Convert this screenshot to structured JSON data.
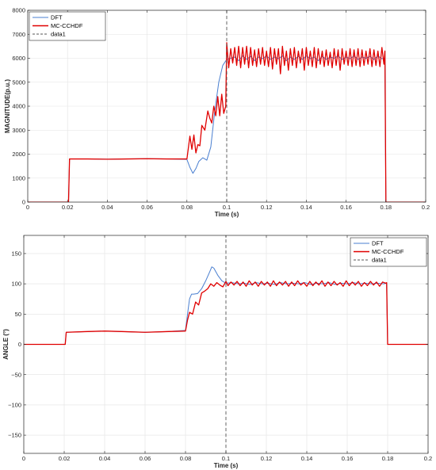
{
  "chart_data": [
    {
      "type": "line",
      "title": "",
      "xlabel": "Time (s)",
      "ylabel": "MAGNITUDE(p.u.)",
      "xlim": [
        0,
        0.2
      ],
      "ylim": [
        0,
        8000
      ],
      "xticks": [
        0,
        0.02,
        0.04,
        0.06,
        0.08,
        0.1,
        0.12,
        0.14,
        0.16,
        0.18,
        0.2
      ],
      "xtick_labels": [
        "0",
        "0.02",
        "0.04",
        "0.06",
        "0.08",
        "0.1",
        "0.12",
        "0.14",
        "0.16",
        "0.18",
        "0.2"
      ],
      "yticks": [
        0,
        1000,
        2000,
        3000,
        4000,
        5000,
        6000,
        7000,
        8000
      ],
      "ytick_labels": [
        "0",
        "1000",
        "2000",
        "3000",
        "4000",
        "5000",
        "6000",
        "7000",
        "8000"
      ],
      "grid": true,
      "legend_position": "top-left",
      "series": [
        {
          "name": "DFT",
          "color": "#4a7fd0",
          "x": [
            0,
            0.0205,
            0.021,
            0.03,
            0.04,
            0.05,
            0.06,
            0.07,
            0.08,
            0.0815,
            0.083,
            0.0845,
            0.086,
            0.088,
            0.09,
            0.092,
            0.094,
            0.096,
            0.098,
            0.1,
            0.102,
            0.104,
            0.106,
            0.108,
            0.11,
            0.112,
            0.114,
            0.116,
            0.118,
            0.12,
            0.122,
            0.124,
            0.126,
            0.128,
            0.13,
            0.132,
            0.134,
            0.136,
            0.138,
            0.14,
            0.142,
            0.144,
            0.146,
            0.148,
            0.15,
            0.152,
            0.154,
            0.156,
            0.158,
            0.16,
            0.162,
            0.164,
            0.166,
            0.168,
            0.17,
            0.172,
            0.174,
            0.176,
            0.178,
            0.1795,
            0.18,
            0.2
          ],
          "y": [
            0,
            0,
            1800,
            1800,
            1790,
            1800,
            1810,
            1800,
            1780,
            1450,
            1200,
            1400,
            1700,
            1850,
            1750,
            2300,
            3800,
            5000,
            5700,
            5950,
            6000,
            6050,
            5900,
            6100,
            5950,
            6080,
            5900,
            6050,
            5980,
            6100,
            5950,
            6050,
            5980,
            6100,
            5900,
            6050,
            5950,
            6080,
            5950,
            6100,
            5980,
            6050,
            5900,
            6080,
            5950,
            6050,
            6000,
            6100,
            5950,
            6050,
            5980,
            6100,
            5950,
            6050,
            6000,
            6080,
            5950,
            6100,
            5980,
            6000,
            0,
            0
          ]
        },
        {
          "name": "MC-CCHDF",
          "color": "#e00000",
          "x": [
            0,
            0.0205,
            0.021,
            0.03,
            0.04,
            0.05,
            0.06,
            0.07,
            0.08,
            0.0815,
            0.0825,
            0.0835,
            0.0845,
            0.0855,
            0.0865,
            0.0875,
            0.089,
            0.0905,
            0.0915,
            0.0925,
            0.0935,
            0.0945,
            0.0955,
            0.0965,
            0.0975,
            0.0985,
            0.0995,
            0.1,
            0.101,
            0.102,
            0.103,
            0.104,
            0.105,
            0.106,
            0.107,
            0.108,
            0.109,
            0.11,
            0.111,
            0.112,
            0.113,
            0.114,
            0.115,
            0.116,
            0.117,
            0.118,
            0.119,
            0.12,
            0.121,
            0.122,
            0.123,
            0.124,
            0.125,
            0.126,
            0.127,
            0.128,
            0.129,
            0.13,
            0.131,
            0.132,
            0.133,
            0.134,
            0.135,
            0.136,
            0.137,
            0.138,
            0.139,
            0.14,
            0.141,
            0.142,
            0.143,
            0.144,
            0.145,
            0.146,
            0.147,
            0.148,
            0.149,
            0.15,
            0.151,
            0.152,
            0.153,
            0.154,
            0.155,
            0.156,
            0.157,
            0.158,
            0.159,
            0.16,
            0.161,
            0.162,
            0.163,
            0.164,
            0.165,
            0.166,
            0.167,
            0.168,
            0.169,
            0.17,
            0.171,
            0.172,
            0.173,
            0.174,
            0.175,
            0.176,
            0.177,
            0.178,
            0.179,
            0.1795,
            0.18,
            0.2
          ],
          "y": [
            0,
            0,
            1800,
            1800,
            1790,
            1800,
            1810,
            1800,
            1800,
            2750,
            2200,
            2800,
            2050,
            2400,
            2350,
            3200,
            3000,
            3800,
            3500,
            3300,
            4000,
            3600,
            4400,
            3600,
            4500,
            3700,
            4000,
            6650,
            5600,
            6400,
            5800,
            6450,
            5700,
            6500,
            5600,
            6450,
            5750,
            6500,
            5600,
            6450,
            5700,
            6350,
            5650,
            6400,
            5750,
            6450,
            5700,
            6300,
            5650,
            6450,
            5550,
            6400,
            5750,
            6400,
            5350,
            6500,
            5700,
            6300,
            5500,
            6400,
            5700,
            6450,
            5600,
            6300,
            5800,
            6400,
            5500,
            6450,
            5700,
            6300,
            5650,
            6450,
            5600,
            6400,
            5750,
            6300,
            5650,
            6350,
            5700,
            6250,
            5600,
            6400,
            5700,
            6350,
            5500,
            6400,
            5750,
            6300,
            5700,
            6400,
            5650,
            6350,
            5700,
            6400,
            5650,
            6350,
            5700,
            6300,
            5750,
            6400,
            5650,
            6350,
            5700,
            6300,
            5650,
            6450,
            5750,
            6300,
            0,
            0
          ]
        },
        {
          "name": "data1",
          "color": "#555555",
          "dashed": true,
          "x": [
            0.1,
            0.1
          ],
          "y": [
            0,
            8000
          ]
        }
      ]
    },
    {
      "type": "line",
      "title": "",
      "xlabel": "Time (s)",
      "ylabel": "ANGLE (°)",
      "xlim": [
        0,
        0.2
      ],
      "ylim": [
        -180,
        180
      ],
      "xticks": [
        0,
        0.02,
        0.04,
        0.06,
        0.08,
        0.1,
        0.12,
        0.14,
        0.16,
        0.18,
        0.2
      ],
      "xtick_labels": [
        "0",
        "0.02",
        "0.04",
        "0.06",
        "0.08",
        "0.1",
        "0.12",
        "0.14",
        "0.16",
        "0.18",
        "0.2"
      ],
      "yticks": [
        -150,
        -100,
        -50,
        0,
        50,
        100,
        150
      ],
      "ytick_labels": [
        "−150",
        "−100",
        "−50",
        "0",
        "50",
        "100",
        "150"
      ],
      "grid": true,
      "legend_position": "top-right",
      "series": [
        {
          "name": "DFT",
          "color": "#4a7fd0",
          "x": [
            0,
            0.0205,
            0.021,
            0.03,
            0.04,
            0.05,
            0.06,
            0.07,
            0.08,
            0.081,
            0.082,
            0.083,
            0.084,
            0.086,
            0.088,
            0.09,
            0.092,
            0.093,
            0.094,
            0.096,
            0.098,
            0.1,
            0.103,
            0.106,
            0.109,
            0.112,
            0.115,
            0.118,
            0.121,
            0.124,
            0.127,
            0.13,
            0.133,
            0.136,
            0.139,
            0.142,
            0.145,
            0.148,
            0.151,
            0.154,
            0.157,
            0.16,
            0.163,
            0.166,
            0.169,
            0.172,
            0.175,
            0.178,
            0.1795,
            0.18,
            0.2
          ],
          "y": [
            0,
            0,
            20,
            21,
            22,
            21,
            20,
            21,
            23,
            50,
            75,
            83,
            83,
            84,
            92,
            105,
            120,
            128,
            126,
            114,
            105,
            101,
            102,
            100,
            101,
            99,
            102,
            100,
            101,
            99,
            102,
            100,
            101,
            100,
            102,
            99,
            101,
            100,
            102,
            99,
            101,
            100,
            102,
            100,
            101,
            100,
            101,
            100,
            101,
            0,
            0
          ]
        },
        {
          "name": "MC-CCHDF",
          "color": "#e00000",
          "x": [
            0,
            0.0205,
            0.021,
            0.03,
            0.04,
            0.05,
            0.06,
            0.07,
            0.08,
            0.081,
            0.082,
            0.0835,
            0.085,
            0.0865,
            0.088,
            0.0895,
            0.091,
            0.0925,
            0.094,
            0.0955,
            0.097,
            0.0985,
            0.1,
            0.101,
            0.1025,
            0.104,
            0.1055,
            0.107,
            0.1085,
            0.11,
            0.1115,
            0.113,
            0.1145,
            0.116,
            0.1175,
            0.119,
            0.1205,
            0.122,
            0.1235,
            0.125,
            0.1265,
            0.128,
            0.1295,
            0.131,
            0.1325,
            0.134,
            0.1355,
            0.137,
            0.1385,
            0.14,
            0.1415,
            0.143,
            0.1445,
            0.146,
            0.1475,
            0.149,
            0.1505,
            0.152,
            0.1535,
            0.155,
            0.1565,
            0.158,
            0.1595,
            0.161,
            0.1625,
            0.164,
            0.1655,
            0.167,
            0.1685,
            0.17,
            0.1715,
            0.173,
            0.1745,
            0.176,
            0.1775,
            0.179,
            0.1795,
            0.18,
            0.2
          ],
          "y": [
            0,
            0,
            20,
            21,
            22,
            21,
            20,
            21,
            22,
            40,
            53,
            50,
            70,
            65,
            85,
            88,
            92,
            100,
            96,
            102,
            98,
            95,
            104,
            97,
            103,
            98,
            104,
            97,
            103,
            96,
            105,
            98,
            103,
            96,
            104,
            98,
            103,
            96,
            105,
            97,
            103,
            98,
            104,
            96,
            103,
            97,
            105,
            98,
            102,
            96,
            104,
            97,
            103,
            98,
            105,
            96,
            103,
            97,
            104,
            98,
            102,
            96,
            105,
            97,
            103,
            98,
            104,
            96,
            102,
            97,
            104,
            98,
            103,
            96,
            103,
            101,
            102,
            0,
            0
          ]
        },
        {
          "name": "data1",
          "color": "#555555",
          "dashed": true,
          "x": [
            0.1,
            0.1
          ],
          "y": [
            -180,
            180
          ]
        }
      ]
    }
  ]
}
